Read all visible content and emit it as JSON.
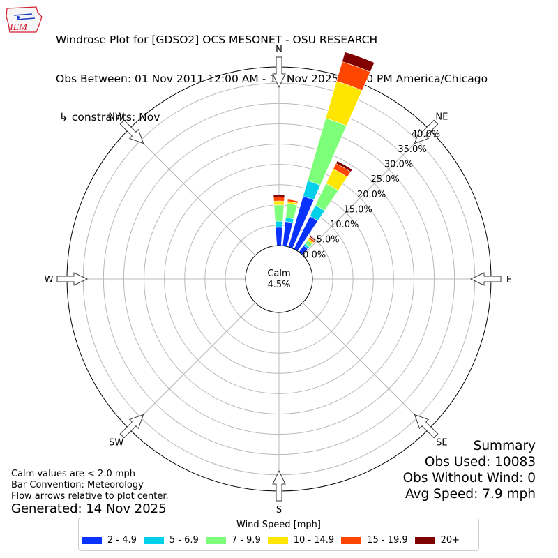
{
  "logo": {
    "text": "IEM",
    "color": "#d31d2e"
  },
  "header": {
    "title_line1": "Windrose Plot for [GDSO2] OCS MESONET - OSU RESEARCH",
    "title_line2": "Obs Between: 01 Nov 2011 12:00 AM - 13 Nov 2025 05:00 PM America/Chicago",
    "title_line3": " ↳ constraints: Nov"
  },
  "notes": {
    "line1": "Calm values are < 2.0 mph",
    "line2": "Bar Convention: Meteorology",
    "line3": "Flow arrows relative to plot center.",
    "generated": "Generated: 14 Nov 2025"
  },
  "summary": {
    "heading": "Summary",
    "obs_used": "Obs Used: 10083",
    "obs_without_wind": "Obs Without Wind: 0",
    "avg_speed": "Avg Speed: 7.9 mph"
  },
  "chart_data": {
    "type": "windrose",
    "calm_label": "Calm",
    "calm_percent": "4.5%",
    "radial_max": 44,
    "radial_ticks": [
      0,
      5,
      10,
      15,
      20,
      25,
      30,
      35,
      40
    ],
    "radial_tick_labels": [
      "0.0%",
      "5.0%",
      "10.0%",
      "15.0%",
      "20.0%",
      "25.0%",
      "30.0%",
      "35.0%",
      "40.0%"
    ],
    "directions": [
      {
        "label": "N",
        "angle": 0
      },
      {
        "label": "NE",
        "angle": 45
      },
      {
        "label": "E",
        "angle": 90
      },
      {
        "label": "SE",
        "angle": 135
      },
      {
        "label": "S",
        "angle": 180
      },
      {
        "label": "SW",
        "angle": 225
      },
      {
        "label": "W",
        "angle": 270
      },
      {
        "label": "NW",
        "angle": 315
      }
    ],
    "legend_title": "Wind Speed [mph]",
    "series": [
      {
        "name": "2 - 4.9",
        "color": "#0a32ff"
      },
      {
        "name": "5 - 6.9",
        "color": "#00d0ea"
      },
      {
        "name": "7 - 9.9",
        "color": "#7dff7a"
      },
      {
        "name": "10 - 14.9",
        "color": "#ffe600"
      },
      {
        "name": "15 - 19.9",
        "color": "#ff4500"
      },
      {
        "name": "20+",
        "color": "#800000"
      }
    ],
    "bars": [
      {
        "dir_deg": 0,
        "values": [
          4.5,
          1.5,
          4.0,
          1.0,
          1.0,
          0.5
        ]
      },
      {
        "dir_deg": 10,
        "values": [
          6.0,
          1.0,
          3.5,
          0.5,
          0.5,
          0.0
        ]
      },
      {
        "dir_deg": 20,
        "values": [
          13.0,
          4.0,
          16.0,
          9.5,
          5.0,
          2.5
        ]
      },
      {
        "dir_deg": 30,
        "values": [
          9.0,
          3.0,
          6.0,
          4.0,
          1.5,
          0.7
        ]
      },
      {
        "dir_deg": 40,
        "values": [
          2.0,
          0.6,
          1.0,
          0.5,
          0.5,
          0.3
        ]
      }
    ]
  }
}
